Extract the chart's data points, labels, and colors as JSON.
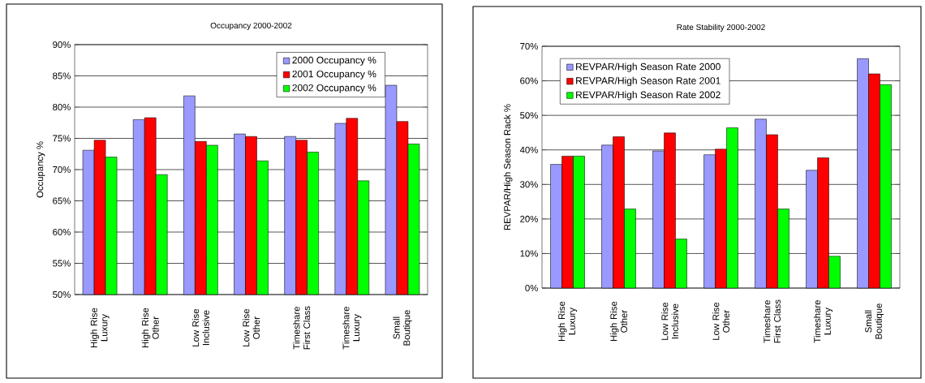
{
  "chart_data": [
    {
      "type": "bar",
      "title": "Occupancy 2000-2002",
      "ylabel": "Occupancy %",
      "categories": [
        "High Rise Luxury",
        "High Rise Other",
        "Low Rise Inclusive",
        "Low Rise Other",
        "Timeshare First Class",
        "Timeshare Luxury",
        "Small Boutique"
      ],
      "series": [
        {
          "name": "2000 Occupancy %",
          "color": "#9999ff",
          "values": [
            73.1,
            78.0,
            81.8,
            75.7,
            75.3,
            77.4,
            83.5
          ]
        },
        {
          "name": "2001 Occupancy %",
          "color": "#ff0000",
          "values": [
            74.7,
            78.3,
            74.5,
            75.3,
            74.7,
            78.2,
            77.7
          ]
        },
        {
          "name": "2002 Occupancy %",
          "color": "#00ff00",
          "values": [
            72.0,
            69.2,
            73.9,
            71.4,
            72.8,
            68.2,
            74.1
          ]
        }
      ],
      "ylim": [
        50,
        90
      ],
      "yticks": [
        {
          "value": 50,
          "label": "50%"
        },
        {
          "value": 55,
          "label": "55%"
        },
        {
          "value": 60,
          "label": "60%"
        },
        {
          "value": 65,
          "label": "65%"
        },
        {
          "value": 70,
          "label": "70%"
        },
        {
          "value": 75,
          "label": "75%"
        },
        {
          "value": 80,
          "label": "80%"
        },
        {
          "value": 85,
          "label": "85%"
        },
        {
          "value": 90,
          "label": "90%"
        }
      ],
      "grid": "y",
      "legend": "top right"
    },
    {
      "type": "bar",
      "title": "Rate Stability 2000-2002",
      "ylabel": "REVPAR/High Season Rack  %",
      "categories": [
        "High Rise Luxury",
        "High Rise Other",
        "Low Rise Inclusive",
        "Low Rise Other",
        "Timeshare First Class",
        "Timeshare Luxury",
        "Small Boutique"
      ],
      "series": [
        {
          "name": "REVPAR/High Season Rate 2000",
          "color": "#9999ff",
          "values": [
            35.8,
            41.4,
            39.7,
            38.6,
            48.9,
            34.1,
            66.4
          ]
        },
        {
          "name": "REVPAR/High Season Rate 2001",
          "color": "#ff0000",
          "values": [
            38.2,
            43.8,
            44.9,
            40.2,
            44.4,
            37.7,
            62.0
          ]
        },
        {
          "name": "REVPAR/High Season Rate 2002",
          "color": "#00ff00",
          "values": [
            38.2,
            22.9,
            14.2,
            46.4,
            22.9,
            9.2,
            58.9
          ]
        }
      ],
      "ylim": [
        0,
        70
      ],
      "yticks": [
        {
          "value": 0,
          "label": "0%"
        },
        {
          "value": 10,
          "label": "10%"
        },
        {
          "value": 20,
          "label": "20%"
        },
        {
          "value": 30,
          "label": "30%"
        },
        {
          "value": 40,
          "label": "40%"
        },
        {
          "value": 50,
          "label": "50%"
        },
        {
          "value": 60,
          "label": "60%"
        },
        {
          "value": 70,
          "label": "70%"
        }
      ],
      "grid": "y",
      "legend": "top left"
    }
  ]
}
